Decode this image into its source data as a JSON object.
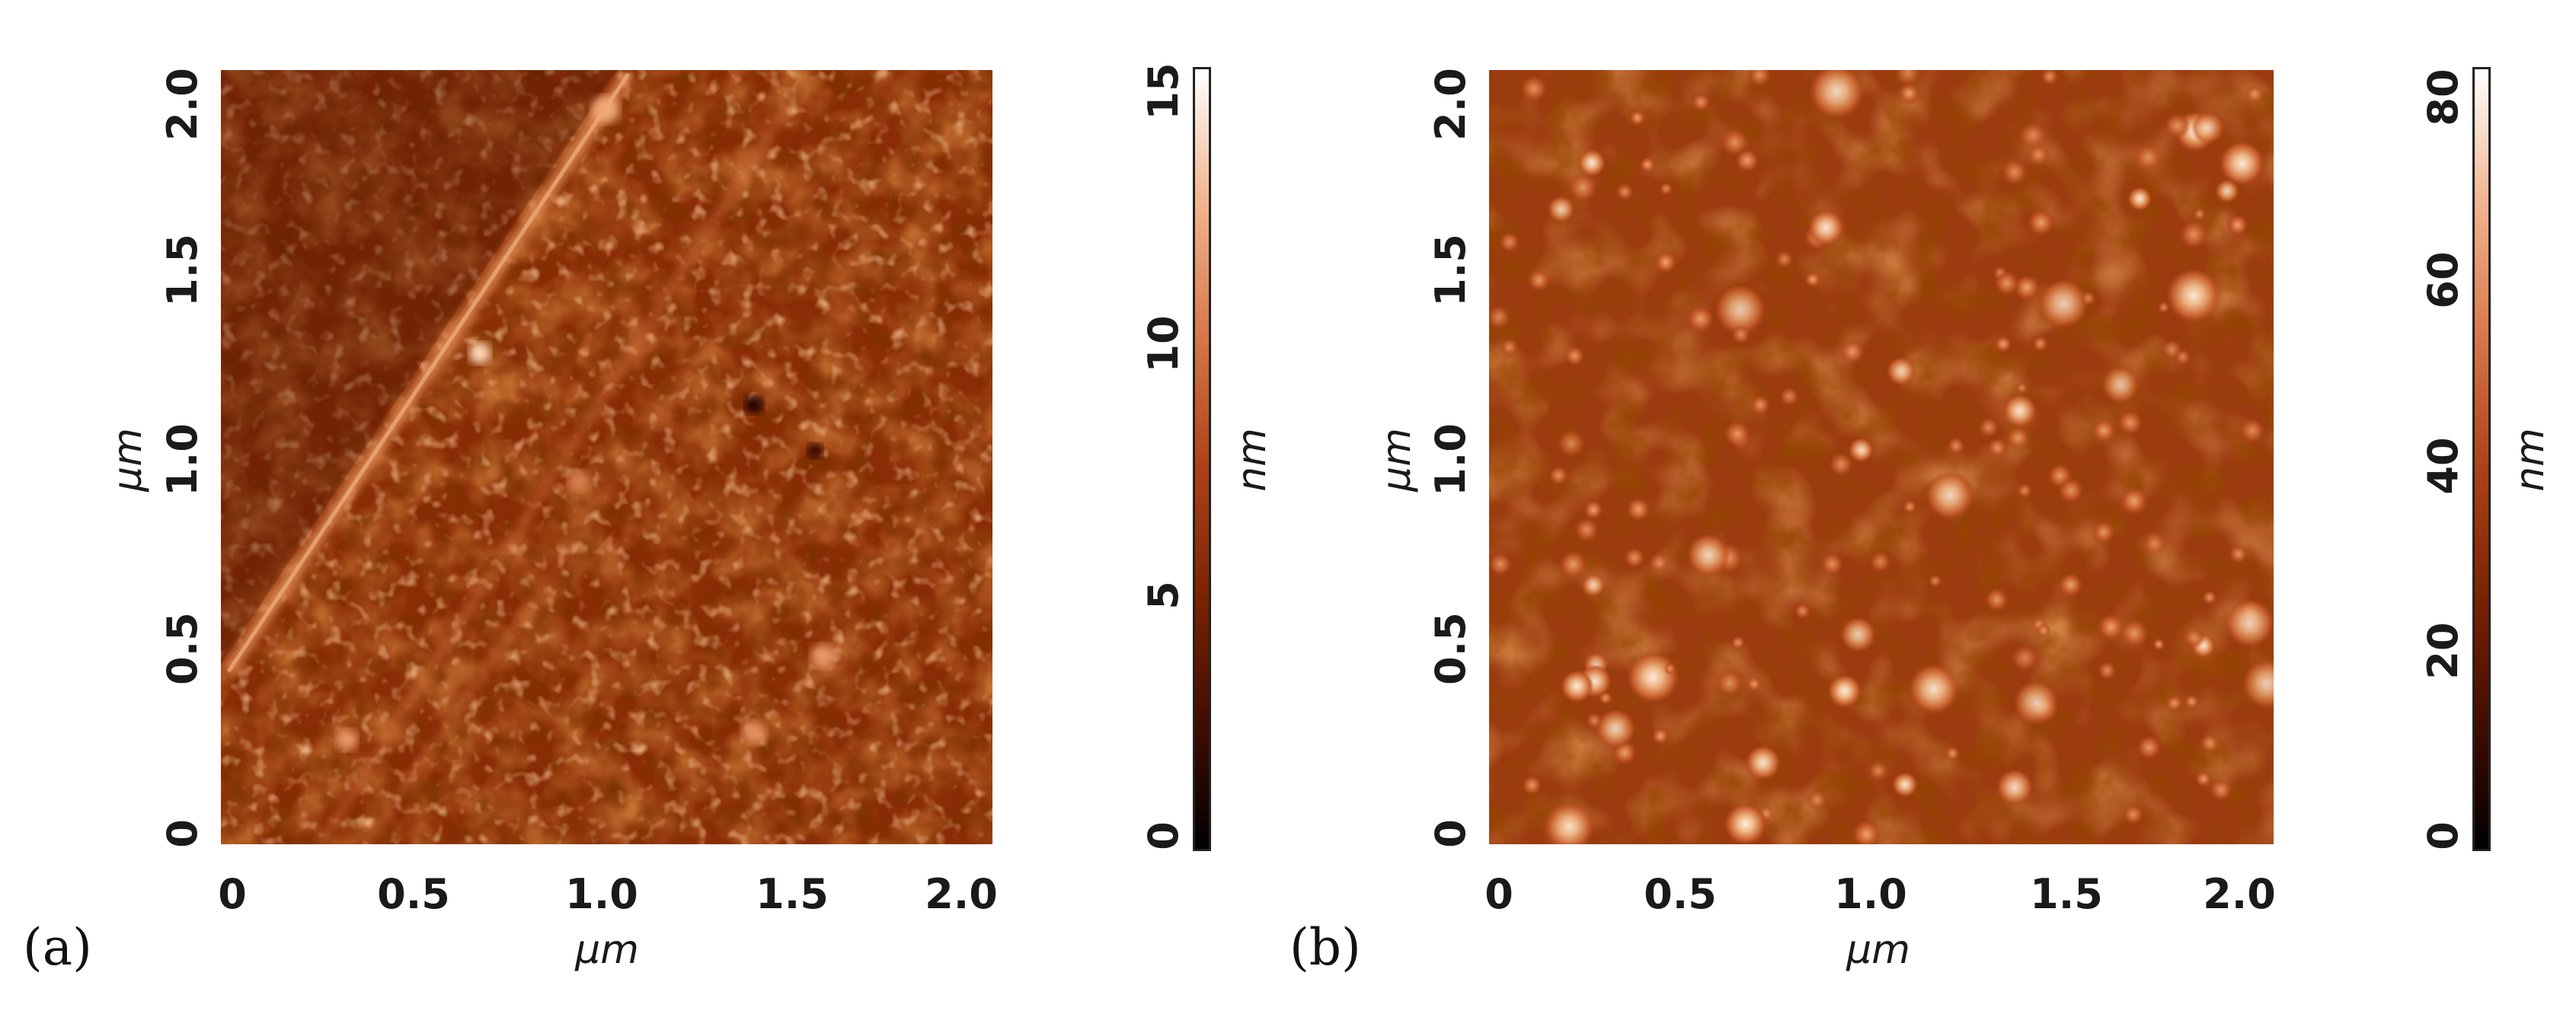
{
  "panels": [
    {
      "letter": "(a)",
      "xlabel": "µm",
      "ylabel": "µm",
      "x_ticks": [
        "0",
        "0.5",
        "1.0",
        "1.5",
        "2.0"
      ],
      "y_ticks": [
        "0",
        "0.5",
        "1.0",
        "1.5",
        "2.0"
      ],
      "colorbar_label": "nm",
      "colorbar_ticks": [
        "0",
        "5",
        "10",
        "15"
      ],
      "z_range_nm": [
        0,
        15
      ],
      "texture": "fine-grained-with-diagonal-scratches"
    },
    {
      "letter": "(b)",
      "xlabel": "µm",
      "ylabel": "µm",
      "x_ticks": [
        "0",
        "0.5",
        "1.0",
        "1.5",
        "2.0"
      ],
      "y_ticks": [
        "0",
        "0.5",
        "1.0",
        "1.5",
        "2.0"
      ],
      "colorbar_label": "nm",
      "colorbar_ticks": [
        "0",
        "20",
        "40",
        "60",
        "80"
      ],
      "z_range_nm": [
        0,
        80
      ],
      "texture": "dense-nanoparticle-islands"
    }
  ],
  "colormap": [
    "#000000",
    "#3a0a00",
    "#7a2200",
    "#b0441a",
    "#d8784a",
    "#f2b894",
    "#ffffff"
  ]
}
